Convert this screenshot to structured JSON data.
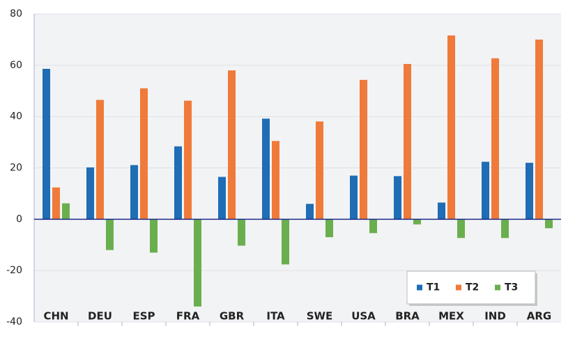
{
  "chart_data": {
    "type": "bar",
    "categories": [
      "CHN",
      "DEU",
      "ESP",
      "FRA",
      "GBR",
      "ITA",
      "SWE",
      "USA",
      "BRA",
      "MEX",
      "IND",
      "ARG"
    ],
    "series": [
      {
        "name": "T1",
        "color": "#1f6db5",
        "values": [
          58.6,
          20.2,
          21.1,
          28.4,
          16.5,
          39.2,
          6.0,
          17.0,
          16.8,
          6.5,
          22.4,
          22.0
        ]
      },
      {
        "name": "T2",
        "color": "#f07a3a",
        "values": [
          12.4,
          46.5,
          51.0,
          46.2,
          58.0,
          30.5,
          38.1,
          54.3,
          60.5,
          71.6,
          62.7,
          70.0
        ]
      },
      {
        "name": "T3",
        "color": "#6aaf4e",
        "values": [
          6.2,
          -12.0,
          -13.0,
          -34.0,
          -10.3,
          -17.6,
          -7.0,
          -5.4,
          -2.0,
          -7.3,
          -7.3,
          -3.5
        ]
      }
    ],
    "ylim": [
      -40,
      80
    ],
    "yticks": [
      -40,
      -20,
      0,
      20,
      40,
      60,
      80
    ],
    "grid": true,
    "legend": "bottom-right"
  }
}
